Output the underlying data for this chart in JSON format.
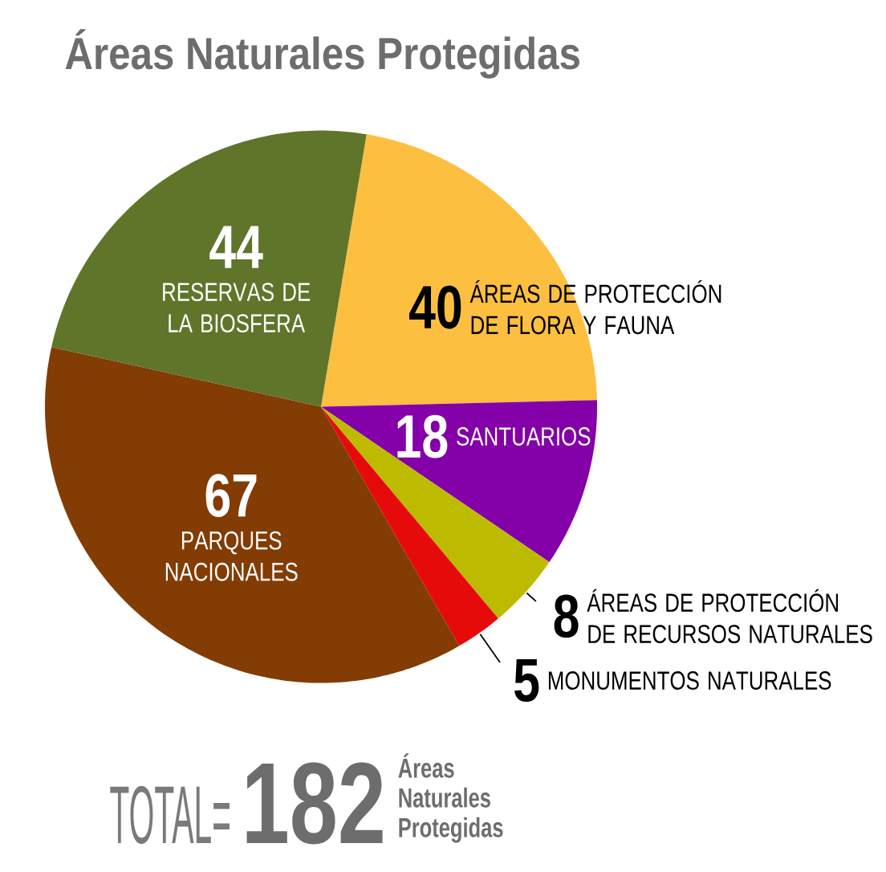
{
  "chart_data": {
    "type": "pie",
    "title": "Áreas Naturales Protegidas",
    "categories": [
      "ÁREAS DE PROTECCIÓN DE FLORA Y FAUNA",
      "SANTUARIOS",
      "ÁREAS DE PROTECCIÓN DE RECURSOS NATURALES",
      "MONUMENTOS NATURALES",
      "PARQUES NACIONALES",
      "RESERVAS DE LA BIOSFERA"
    ],
    "values": [
      40,
      18,
      8,
      5,
      67,
      44
    ],
    "colors": [
      "#fdbf40",
      "#8400a8",
      "#bdbb00",
      "#e60b0b",
      "#823c04",
      "#5f752a"
    ],
    "data_labels": true,
    "annotations": [
      "TOTAL=",
      "182",
      "Áreas Naturales Protegidas"
    ]
  }
}
